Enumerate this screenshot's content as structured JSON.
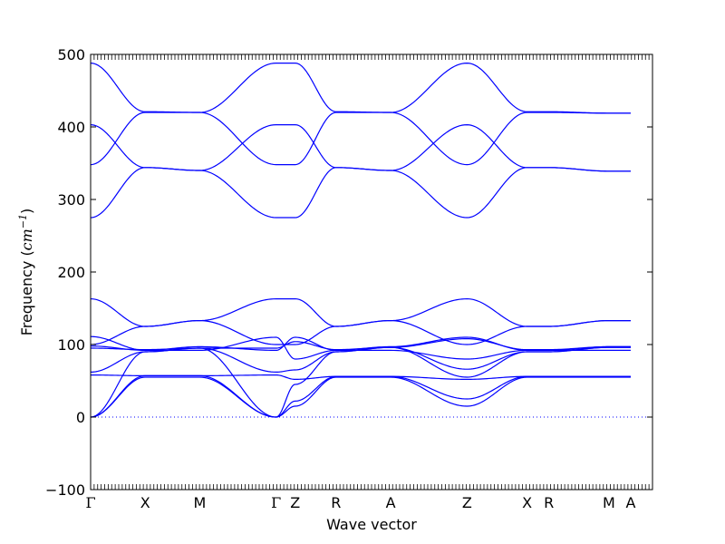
{
  "chart_data": {
    "type": "line",
    "xlabel": "Wave vector",
    "ylabel": {
      "text": "Frequency (",
      "unit": "cm",
      "exponent": "−1",
      "close": ")"
    },
    "ylim": [
      -100,
      500
    ],
    "yticks": [
      -100,
      0,
      100,
      200,
      300,
      400,
      500
    ],
    "x": [
      0,
      1,
      2,
      3.4,
      3.75,
      4.5,
      5.5,
      6.9,
      8,
      8.4,
      9.5,
      9.9
    ],
    "xlim": [
      0,
      10.3
    ],
    "xticks": [
      {
        "x": 0,
        "label": "Γ"
      },
      {
        "x": 1,
        "label": "X"
      },
      {
        "x": 2,
        "label": "M"
      },
      {
        "x": 3.4,
        "label": "Γ"
      },
      {
        "x": 3.75,
        "label": "Z"
      },
      {
        "x": 4.5,
        "label": "R"
      },
      {
        "x": 5.5,
        "label": "A"
      },
      {
        "x": 6.9,
        "label": "Z"
      },
      {
        "x": 8,
        "label": "X"
      },
      {
        "x": 8.4,
        "label": "R"
      },
      {
        "x": 9.5,
        "label": "M"
      },
      {
        "x": 9.9,
        "label": "A"
      }
    ],
    "series": [
      {
        "values": [
          0,
          55,
          55,
          0,
          15,
          55,
          55,
          15,
          55,
          55,
          55,
          55
        ]
      },
      {
        "values": [
          0,
          57,
          57,
          0,
          22,
          56,
          56,
          25,
          56,
          56,
          56,
          56
        ]
      },
      {
        "values": [
          0,
          90,
          95,
          0,
          45,
          90,
          96,
          55,
          90,
          90,
          96,
          96
        ]
      },
      {
        "values": [
          58,
          57,
          57,
          58,
          52,
          56,
          56,
          52,
          56,
          56,
          56,
          56
        ]
      },
      {
        "values": [
          62,
          90,
          95,
          62,
          65,
          90,
          96,
          66,
          90,
          90,
          96,
          96
        ]
      },
      {
        "values": [
          95,
          93,
          95,
          95,
          104,
          93,
          96,
          108,
          93,
          93,
          97,
          97
        ]
      },
      {
        "values": [
          111,
          92,
          97,
          92,
          110,
          92,
          97,
          110,
          92,
          92,
          97,
          97
        ]
      },
      {
        "values": [
          100,
          125,
          133,
          100,
          100,
          125,
          133,
          100,
          125,
          125,
          133,
          133
        ]
      },
      {
        "values": [
          98,
          92,
          92,
          110,
          80,
          92,
          92,
          80,
          92,
          92,
          92,
          92
        ]
      },
      {
        "values": [
          163,
          125,
          133,
          163,
          163,
          125,
          133,
          163,
          125,
          125,
          133,
          133
        ]
      },
      {
        "values": [
          275,
          344,
          340,
          275,
          275,
          344,
          340,
          275,
          344,
          344,
          339,
          339
        ]
      },
      {
        "values": [
          348,
          420,
          420,
          348,
          348,
          420,
          420,
          348,
          420,
          420,
          419,
          419
        ]
      },
      {
        "values": [
          403,
          344,
          340,
          403,
          403,
          344,
          340,
          403,
          344,
          344,
          339,
          339
        ]
      },
      {
        "values": [
          488,
          421,
          420,
          488,
          488,
          421,
          420,
          488,
          421,
          421,
          419,
          419
        ]
      }
    ],
    "zero_line": true,
    "grid": false,
    "legend": "none",
    "line_color": "#0000ff",
    "zero_line_color": "#0000ff"
  }
}
